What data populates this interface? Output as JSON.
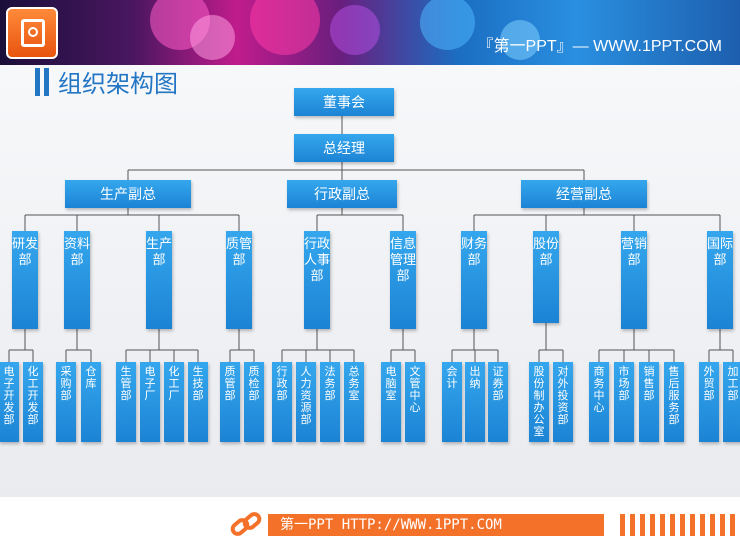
{
  "header": {
    "site": "『第一PPT』— WWW.1PPT.COM",
    "logo_icon": "presentation-icon"
  },
  "page_title": "组织架构图",
  "org": {
    "board": "董事会",
    "gm": "总经理",
    "vps": [
      "生产副总",
      "行政副总",
      "经营副总"
    ],
    "departments": [
      "研发部",
      "资料部",
      "生产部",
      "质管部",
      "行政人事部",
      "信息管理部",
      "财务部",
      "股份部",
      "营销部",
      "国际部"
    ],
    "units": [
      [
        "电子开发部",
        "化工开发部"
      ],
      [
        "采购部",
        "仓库"
      ],
      [
        "生管部",
        "电子厂",
        "化工厂",
        "生技部"
      ],
      [
        "质管部",
        "质检部"
      ],
      [
        "行政部",
        "人力资源部",
        "法务部",
        "总务室"
      ],
      [
        "电脑室",
        "文管中心"
      ],
      [
        "会计",
        "出纳",
        "证券部"
      ],
      [
        "股份制办公室",
        "对外投资部"
      ],
      [
        "商务中心",
        "市场部",
        "销售部",
        "售后服务部"
      ],
      [
        "外贸部",
        "加工部"
      ]
    ]
  },
  "footer": {
    "text": "第一PPT HTTP://WWW.1PPT.COM",
    "icon": "link-icon"
  },
  "colors": {
    "box": "#1c8ad6",
    "accent": "#f4712a",
    "title": "#2376c4"
  }
}
